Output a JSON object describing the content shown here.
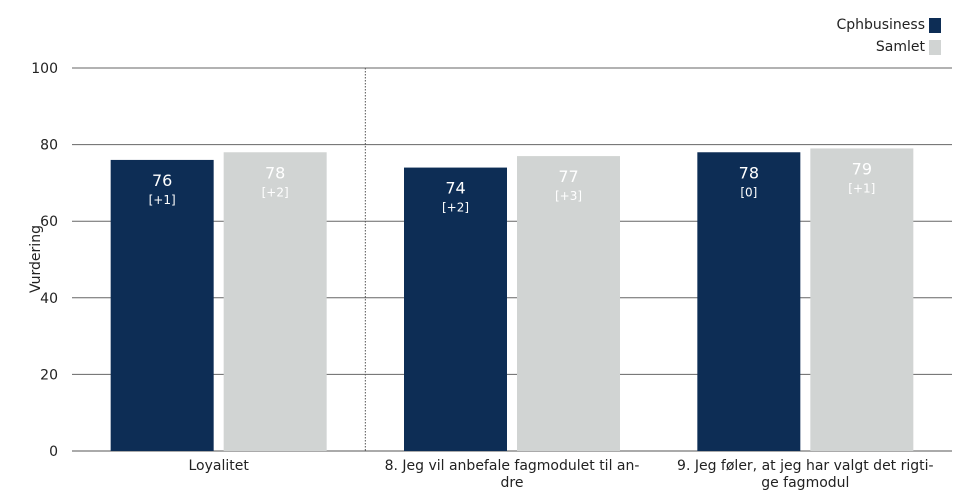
{
  "chart_data": {
    "type": "bar",
    "categories": [
      "Loyalitet",
      "8. Jeg vil anbefale fagmodulet til andre",
      "9. Jeg føler, at jeg har valgt det rigtige fagmodul"
    ],
    "category_lines": [
      [
        "Loyalitet"
      ],
      [
        "8. Jeg vil anbefale fagmodulet til an-",
        "dre"
      ],
      [
        "9. Jeg føler, at jeg har valgt det rigti-",
        "ge fagmodul"
      ]
    ],
    "series": [
      {
        "name": "Cphbusiness",
        "values": [
          76,
          74,
          78
        ],
        "changes": [
          "[+1]",
          "[+2]",
          "[0]"
        ],
        "color": "#0d2d55",
        "label_color": "#ffffff"
      },
      {
        "name": "Samlet",
        "values": [
          78,
          77,
          79
        ],
        "changes": [
          "[+2]",
          "[+3]",
          "[+1]"
        ],
        "color": "#d1d4d3",
        "label_color": "#ffffff"
      }
    ],
    "ylabel": "Vurdering",
    "xlabel": "",
    "ylim": [
      0,
      100
    ],
    "yticks": [
      0,
      20,
      40,
      60,
      80,
      100
    ],
    "grid": true,
    "legend_position": "top-right",
    "separator_after_category": 0
  }
}
